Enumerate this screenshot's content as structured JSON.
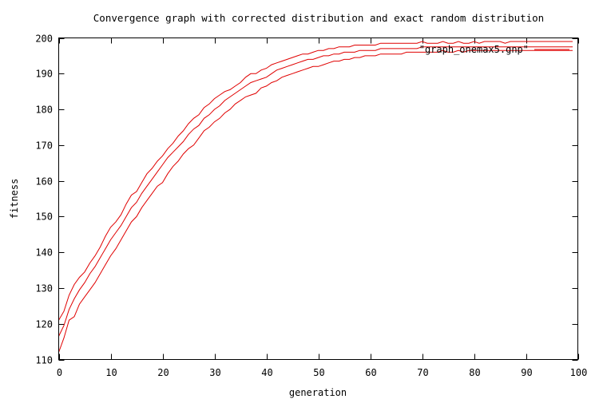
{
  "chart_data": {
    "type": "line",
    "title": "Convergence graph with corrected distribution and exact random distribution",
    "xlabel": "generation",
    "ylabel": "fitness",
    "xlim": [
      0,
      100
    ],
    "ylim": [
      110,
      200
    ],
    "xticks": [
      0,
      10,
      20,
      30,
      40,
      50,
      60,
      70,
      80,
      90,
      100
    ],
    "yticks": [
      110,
      120,
      130,
      140,
      150,
      160,
      170,
      180,
      190,
      200
    ],
    "grid": false,
    "legend": {
      "position": "top-right",
      "entries": [
        "\"graph_onemax5.gnp\""
      ]
    },
    "color": "#e00000",
    "x": [
      0,
      1,
      2,
      3,
      4,
      5,
      6,
      7,
      8,
      9,
      10,
      11,
      12,
      13,
      14,
      15,
      16,
      17,
      18,
      19,
      20,
      21,
      22,
      23,
      24,
      25,
      26,
      27,
      28,
      29,
      30,
      31,
      32,
      33,
      34,
      35,
      36,
      37,
      38,
      39,
      40,
      41,
      42,
      43,
      44,
      45,
      46,
      47,
      48,
      49,
      50,
      51,
      52,
      53,
      54,
      55,
      56,
      57,
      58,
      59,
      60,
      61,
      62,
      63,
      64,
      65,
      66,
      67,
      68,
      69,
      70,
      71,
      72,
      73,
      74,
      75,
      76,
      77,
      78,
      79,
      80,
      81,
      82,
      83,
      84,
      85,
      86,
      87,
      88,
      89,
      90,
      91,
      92,
      93,
      94,
      95,
      96,
      97,
      98,
      99
    ],
    "series": [
      {
        "values": [
          121.0,
          123.5,
          128.0,
          131.0,
          133.0,
          134.5,
          137.0,
          139.0,
          141.5,
          144.5,
          147.0,
          148.5,
          150.5,
          153.5,
          156.0,
          157.0,
          159.5,
          162.0,
          163.5,
          165.5,
          167.0,
          169.0,
          170.5,
          172.5,
          174.0,
          176.0,
          177.5,
          178.5,
          180.5,
          181.5,
          183.0,
          184.0,
          185.0,
          185.5,
          186.5,
          187.5,
          189.0,
          190.0,
          190.0,
          191.0,
          191.5,
          192.5,
          193.0,
          193.5,
          194.0,
          194.5,
          195.0,
          195.5,
          195.5,
          196.0,
          196.5,
          196.5,
          197.0,
          197.0,
          197.5,
          197.5,
          197.5,
          198.0,
          198.0,
          198.0,
          198.0,
          198.0,
          198.5,
          198.5,
          198.5,
          198.5,
          198.5,
          198.5,
          198.5,
          198.5,
          199.0,
          198.5,
          198.5,
          198.5,
          199.0,
          198.5,
          198.5,
          199.0,
          198.5,
          198.5,
          199.0,
          198.5,
          199.0,
          199.0,
          199.0,
          199.0,
          198.5,
          199.0,
          199.0,
          199.0,
          199.0,
          199.0,
          199.0,
          199.0,
          199.0,
          199.0,
          199.0,
          199.0,
          199.0,
          199.0
        ]
      },
      {
        "values": [
          116.5,
          119.5,
          124.0,
          127.0,
          129.5,
          131.5,
          134.0,
          136.0,
          138.5,
          141.0,
          143.5,
          145.5,
          147.5,
          150.0,
          152.5,
          154.0,
          156.5,
          158.5,
          160.5,
          162.5,
          164.5,
          166.5,
          168.0,
          169.5,
          171.0,
          173.0,
          174.5,
          175.5,
          177.5,
          178.5,
          180.0,
          181.0,
          182.5,
          183.5,
          184.5,
          185.5,
          186.5,
          187.5,
          188.0,
          188.5,
          189.0,
          190.0,
          191.0,
          191.5,
          192.0,
          192.5,
          193.0,
          193.5,
          194.0,
          194.0,
          194.5,
          195.0,
          195.0,
          195.5,
          195.5,
          196.0,
          196.0,
          196.0,
          196.5,
          196.5,
          196.5,
          196.5,
          197.0,
          197.0,
          197.0,
          197.0,
          197.0,
          197.0,
          197.0,
          197.0,
          197.5,
          197.5,
          197.5,
          197.5,
          197.5,
          197.5,
          197.5,
          197.5,
          197.5,
          197.5,
          197.5,
          197.5,
          197.5,
          197.5,
          197.5,
          197.5,
          197.5,
          197.5,
          197.5,
          197.5,
          197.5,
          197.5,
          197.5,
          197.5,
          197.5,
          197.5,
          197.5,
          197.5,
          197.5,
          197.5
        ]
      },
      {
        "values": [
          112.0,
          116.0,
          121.0,
          122.0,
          125.5,
          127.5,
          129.5,
          131.5,
          134.0,
          136.5,
          139.0,
          141.0,
          143.5,
          146.0,
          148.5,
          150.0,
          152.5,
          154.5,
          156.5,
          158.5,
          159.5,
          162.0,
          164.0,
          165.5,
          167.5,
          169.0,
          170.0,
          172.0,
          174.0,
          175.0,
          176.5,
          177.5,
          179.0,
          180.0,
          181.5,
          182.5,
          183.5,
          184.0,
          184.5,
          186.0,
          186.5,
          187.5,
          188.0,
          189.0,
          189.5,
          190.0,
          190.5,
          191.0,
          191.5,
          192.0,
          192.0,
          192.5,
          193.0,
          193.5,
          193.5,
          194.0,
          194.0,
          194.5,
          194.5,
          195.0,
          195.0,
          195.0,
          195.5,
          195.5,
          195.5,
          195.5,
          195.5,
          196.0,
          196.0,
          196.0,
          196.0,
          196.0,
          196.0,
          196.0,
          196.5,
          196.0,
          196.0,
          196.5,
          196.0,
          196.5,
          196.5,
          196.5,
          196.5,
          196.5,
          196.5,
          196.5,
          196.5,
          196.5,
          196.5,
          196.5,
          196.5,
          196.5,
          196.5,
          196.5,
          196.5,
          196.5,
          196.5,
          196.5,
          196.5,
          196.5
        ]
      }
    ]
  }
}
